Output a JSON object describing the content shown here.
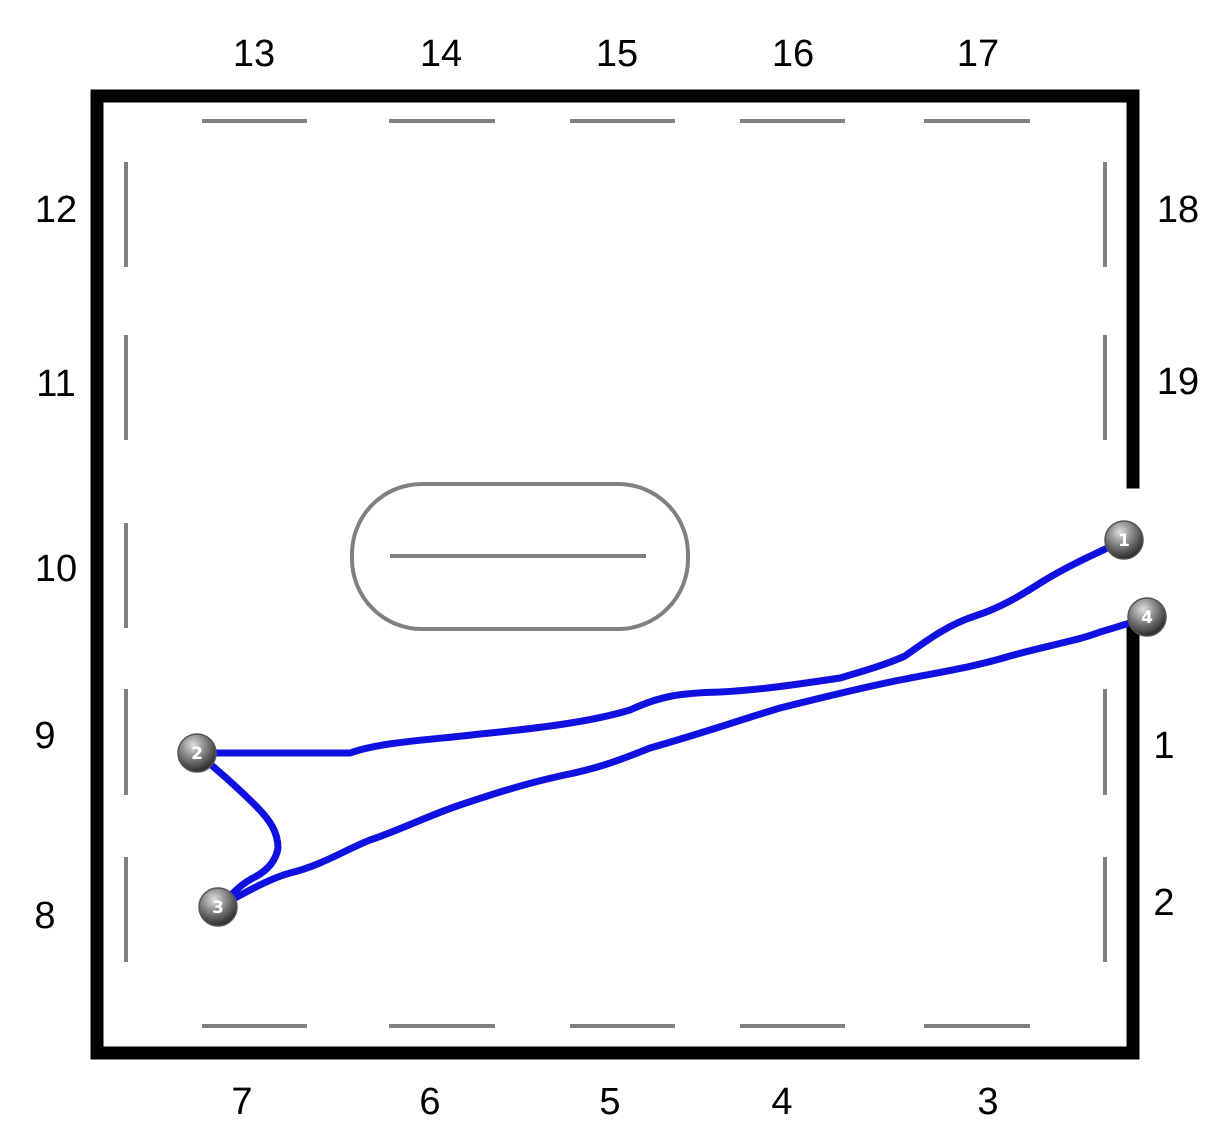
{
  "colors": {
    "wall": "#000000",
    "marker_line": "#808080",
    "path": "#1010e0",
    "background": "#ffffff"
  },
  "labels": {
    "top": [
      "13",
      "14",
      "15",
      "16",
      "17"
    ],
    "left": [
      "12",
      "11",
      "10",
      "9",
      "8"
    ],
    "right": [
      "18",
      "19",
      "1",
      "2"
    ],
    "bottom": [
      "7",
      "6",
      "5",
      "4",
      "3"
    ]
  },
  "waypoints": [
    "1",
    "2",
    "3",
    "4"
  ]
}
